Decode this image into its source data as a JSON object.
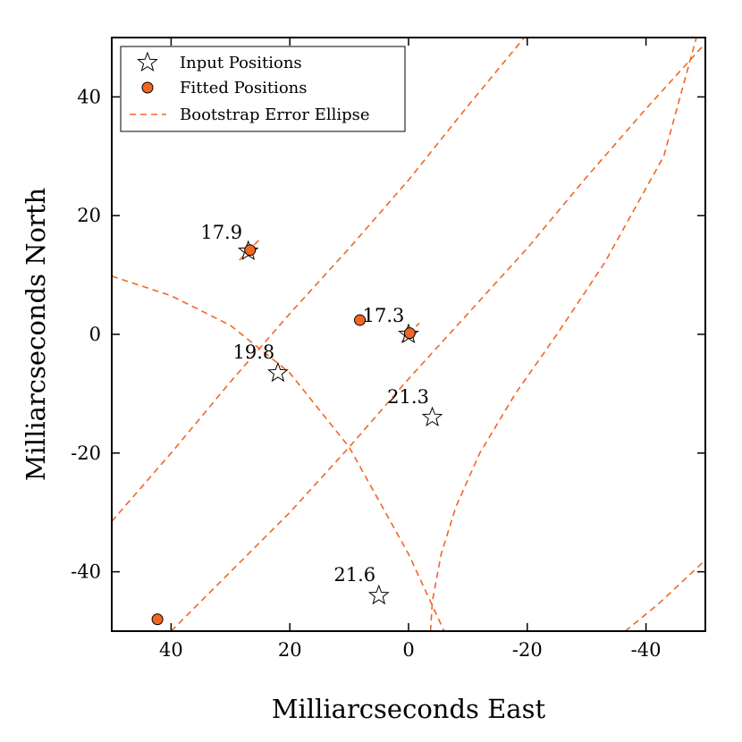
{
  "chart_data": {
    "type": "scatter",
    "xlabel": "Milliarcseconds East",
    "ylabel": "Milliarcseconds North",
    "xlim": [
      50,
      -50
    ],
    "ylim": [
      -50,
      50
    ],
    "x_ticks": [
      40,
      20,
      0,
      -20,
      -40
    ],
    "y_ticks": [
      40,
      20,
      0,
      -20,
      -40
    ],
    "legend_position": "top-left",
    "colors": {
      "fitted": "#f26522",
      "ellipse": "#f26522",
      "input": "#000000"
    },
    "legend": [
      {
        "label": "Input Positions",
        "symbol": "star"
      },
      {
        "label": "Fitted Positions",
        "symbol": "circle"
      },
      {
        "label": "Bootstrap Error Ellipse",
        "symbol": "dashed-line"
      }
    ],
    "input_positions": [
      {
        "x": 27,
        "y": 14,
        "label": "17.9"
      },
      {
        "x": 0,
        "y": 0,
        "label": "17.3"
      },
      {
        "x": 22,
        "y": -6.5,
        "label": "19.8"
      },
      {
        "x": -4,
        "y": -14,
        "label": "21.3"
      },
      {
        "x": 5,
        "y": -44,
        "label": "21.6"
      }
    ],
    "fitted_positions": [
      {
        "x": 26.7,
        "y": 14.2
      },
      {
        "x": -0.2,
        "y": 0.2
      },
      {
        "x": 8.2,
        "y": 2.4
      },
      {
        "x": 42.3,
        "y": -48
      }
    ],
    "error_ellipses": [
      {
        "points": [
          [
            28.5,
            12.5
          ],
          [
            24.8,
            16.3
          ]
        ]
      },
      {
        "points": [
          [
            1.2,
            -1.3
          ],
          [
            -1.8,
            1.9
          ]
        ]
      },
      {
        "points": [
          [
            50,
            -31.5
          ],
          [
            40,
            -20
          ],
          [
            30,
            -8
          ],
          [
            20,
            3.5
          ],
          [
            10,
            14.5
          ],
          [
            0,
            26
          ],
          [
            -10,
            38.5
          ],
          [
            -19.5,
            50
          ]
        ]
      },
      {
        "points": [
          [
            40,
            -50
          ],
          [
            30,
            -40
          ],
          [
            20,
            -30
          ],
          [
            10,
            -19
          ],
          [
            0,
            -7.5
          ],
          [
            -10,
            3.5
          ],
          [
            -20,
            14.5
          ],
          [
            -30,
            26.5
          ],
          [
            -40,
            38
          ],
          [
            -49.5,
            48.5
          ]
        ]
      },
      {
        "points": [
          [
            50,
            9.8
          ],
          [
            40,
            6.5
          ],
          [
            30,
            1.5
          ],
          [
            20,
            -6.5
          ],
          [
            10,
            -19
          ],
          [
            0,
            -37
          ],
          [
            -6,
            -50
          ]
        ]
      },
      {
        "points": [
          [
            -3.7,
            -50
          ],
          [
            -4,
            -45
          ],
          [
            -5.5,
            -37
          ],
          [
            -8,
            -29
          ],
          [
            -12,
            -20
          ],
          [
            -18,
            -10
          ],
          [
            -25,
            0
          ],
          [
            -33,
            12
          ],
          [
            -43,
            30
          ],
          [
            -48.5,
            50
          ]
        ]
      },
      {
        "points": [
          [
            -36.5,
            -50
          ],
          [
            -42,
            -45.5
          ],
          [
            -49.5,
            -38.5
          ]
        ]
      }
    ]
  }
}
